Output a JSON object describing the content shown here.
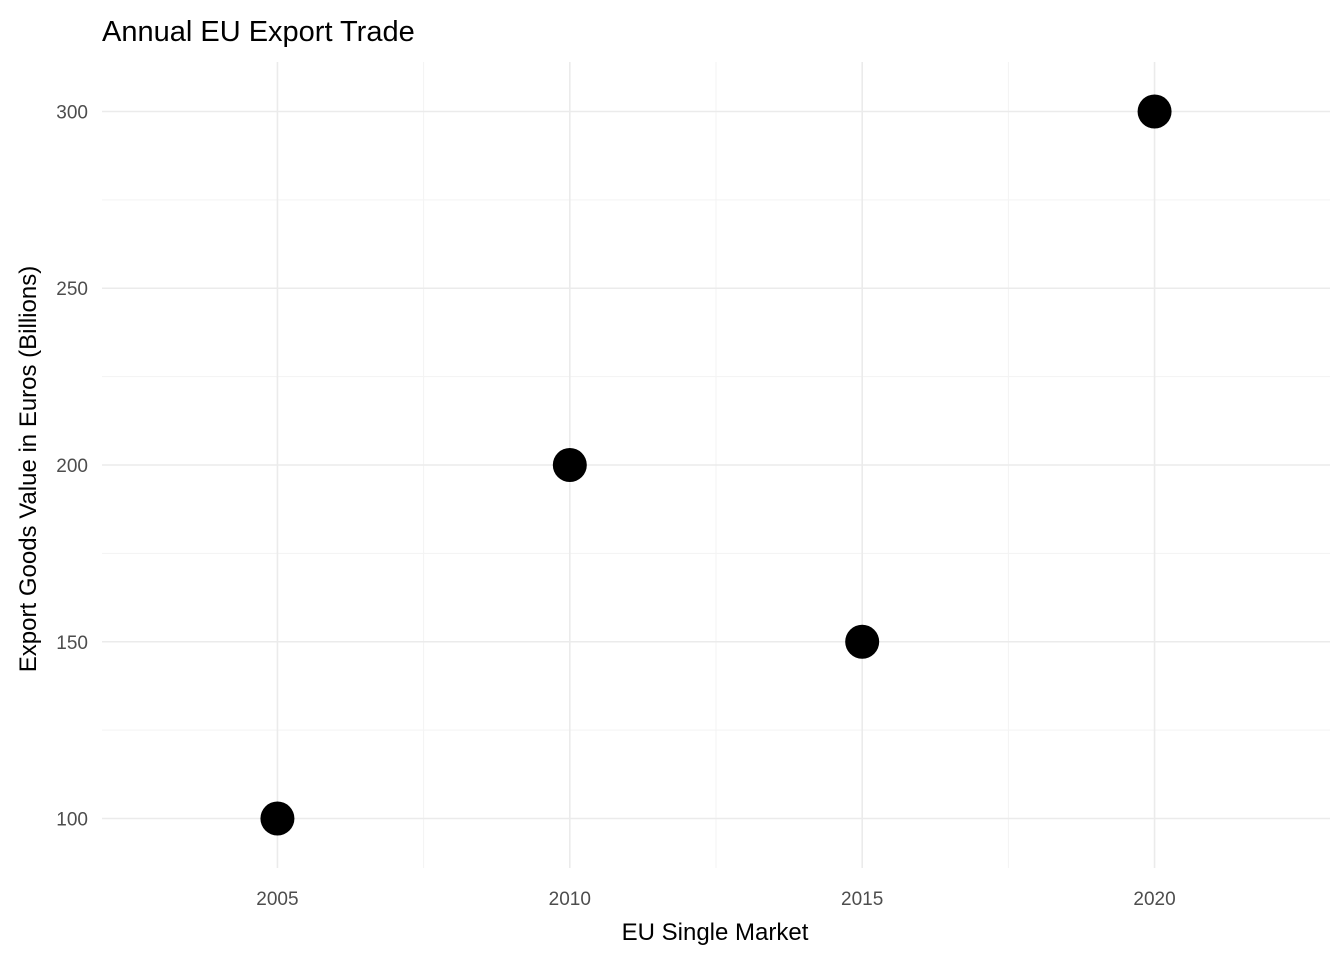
{
  "chart_data": {
    "type": "scatter",
    "title": "Annual EU Export Trade",
    "xlabel": "EU Single Market",
    "ylabel": "Export Goods Value in Euros (Billions)",
    "x": [
      2005,
      2010,
      2015,
      2020
    ],
    "y": [
      100,
      200,
      150,
      300
    ],
    "xlim": [
      2002,
      2023
    ],
    "ylim": [
      86,
      314
    ],
    "x_ticks": [
      2005,
      2010,
      2015,
      2020
    ],
    "y_ticks": [
      100,
      150,
      200,
      250,
      300
    ],
    "x_minor_ticks": [
      2007.5,
      2012.5,
      2017.5
    ],
    "y_minor_ticks": [
      125,
      175,
      225,
      275
    ],
    "grid": true,
    "legend": "none",
    "point_color": "#000000"
  }
}
